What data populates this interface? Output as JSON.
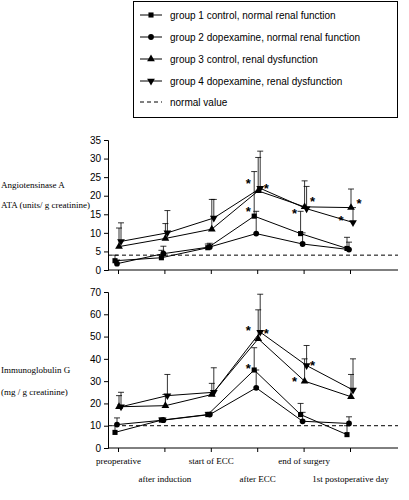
{
  "chart_data": [
    {
      "type": "line",
      "ylabel": [
        "Angiotensinase A",
        "ATA (units/ g creatinine)"
      ],
      "categories": [
        "preoperative",
        "after induction",
        "start of ECC",
        "after ECC",
        "end of surgery",
        "1st postoperative day"
      ],
      "ylim": [
        0,
        35
      ],
      "yticks": [
        0,
        5,
        10,
        15,
        20,
        25,
        30,
        35
      ],
      "tick_labels": "y",
      "legend": "top-right",
      "normal_value": {
        "label": "normal value",
        "value": 4
      },
      "series": [
        {
          "name": "group 1 control, normal renal function",
          "color": "#000000",
          "marker": "square",
          "values": [
            2.5,
            3.3,
            6,
            14.5,
            9.8,
            5.8
          ],
          "errors": [
            1.5,
            2,
            1,
            12,
            6,
            3
          ]
        },
        {
          "name": "group 2 dopexamine, normal renal function",
          "color": "#000000",
          "marker": "circle",
          "values": [
            1.7,
            4.4,
            6.2,
            9.8,
            7,
            5.5
          ],
          "errors": [
            1,
            2,
            1,
            6,
            3,
            2
          ]
        },
        {
          "name": "group 3 control, renal dysfunction",
          "color": "#000000",
          "marker": "triangle-up",
          "values": [
            6.3,
            8.5,
            11,
            21.3,
            17,
            16.8
          ],
          "errors": [
            5,
            4,
            8,
            9,
            7,
            5
          ]
        },
        {
          "name": "group 4 dopexamine, renal dysfunction",
          "color": "#000000",
          "marker": "triangle-down",
          "values": [
            7.7,
            10,
            14,
            22,
            16.5,
            12.8
          ],
          "errors": [
            5,
            6,
            5,
            10,
            6,
            4
          ]
        }
      ],
      "annotations": [
        {
          "text": "*",
          "x": "after ECC",
          "y": 24
        },
        {
          "text": "*",
          "x": "after ECC",
          "y": 22.5
        },
        {
          "text": "*",
          "x": "after ECC",
          "y": 16.5
        },
        {
          "text": "*",
          "x": "end of surgery",
          "y": 19
        },
        {
          "text": "*",
          "x": "end of surgery",
          "y": 16
        },
        {
          "text": "*",
          "x": "1st postoperative day",
          "y": 18.5
        },
        {
          "text": "*",
          "x": "1st postoperative day",
          "y": 14
        }
      ]
    },
    {
      "type": "line",
      "ylabel": [
        "Immunoglobulin G",
        "(mg / g creatinine)"
      ],
      "categories": [
        "preoperative",
        "after induction",
        "start of ECC",
        "after ECC",
        "end of surgery",
        "1st postoperative day"
      ],
      "ylim": [
        0,
        70
      ],
      "yticks": [
        0,
        10,
        20,
        30,
        40,
        50,
        60,
        70
      ],
      "normal_value": {
        "value": 10
      },
      "series": [
        {
          "color": "#000000",
          "marker": "square",
          "values": [
            7,
            12.5,
            15,
            35,
            15,
            6
          ],
          "errors": [
            3,
            1,
            1,
            10,
            5,
            4
          ]
        },
        {
          "color": "#000000",
          "marker": "circle",
          "values": [
            10.5,
            12.5,
            15,
            27,
            12,
            11
          ],
          "errors": [
            3,
            1,
            1,
            8,
            4,
            3
          ]
        },
        {
          "color": "#000000",
          "marker": "triangle-up",
          "values": [
            18.5,
            19,
            24,
            49,
            30,
            23
          ],
          "errors": [
            5,
            5,
            5,
            13,
            10,
            10
          ]
        },
        {
          "color": "#000000",
          "marker": "triangle-down",
          "values": [
            18.5,
            23.5,
            25,
            52,
            37,
            26
          ],
          "errors": [
            6.5,
            9.5,
            11,
            17,
            9,
            14
          ]
        }
      ],
      "annotations": [
        {
          "text": "*",
          "x": "after ECC",
          "y": 54
        },
        {
          "text": "*",
          "x": "after ECC",
          "y": 52.5
        },
        {
          "text": "*",
          "x": "after ECC",
          "y": 37
        },
        {
          "text": "*",
          "x": "end of surgery",
          "y": 38
        },
        {
          "text": "*",
          "x": "end of surgery",
          "y": 31
        }
      ]
    }
  ]
}
